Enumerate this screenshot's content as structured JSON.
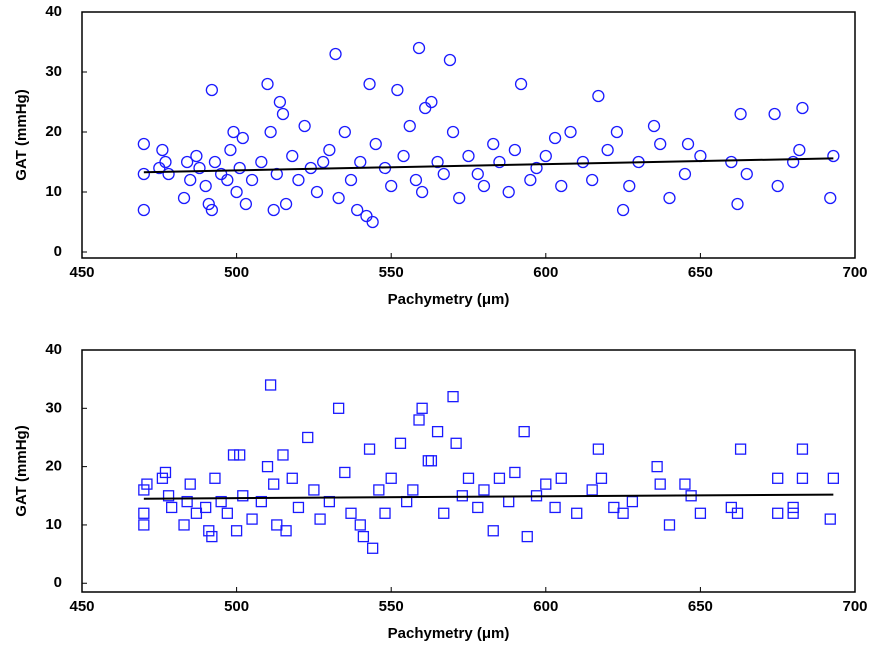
{
  "chart_data": [
    {
      "type": "scatter",
      "marker": "circle",
      "color": "#1a1aff",
      "xlabel": "Pachymetry (μm)",
      "ylabel": "GAT (mmHg)",
      "xlim": [
        450,
        700
      ],
      "xticks": [
        450,
        500,
        550,
        600,
        650,
        700
      ],
      "ylim": [
        -1,
        40
      ],
      "yticks": [
        0,
        10,
        20,
        30,
        40
      ],
      "x": [
        470,
        470,
        470,
        475,
        476,
        477,
        478,
        483,
        484,
        485,
        487,
        488,
        490,
        491,
        492,
        492,
        493,
        495,
        497,
        498,
        499,
        500,
        501,
        502,
        503,
        505,
        508,
        510,
        511,
        512,
        513,
        514,
        515,
        516,
        518,
        520,
        522,
        524,
        526,
        528,
        530,
        532,
        533,
        535,
        537,
        539,
        540,
        542,
        543,
        544,
        545,
        548,
        550,
        552,
        554,
        556,
        558,
        559,
        560,
        561,
        563,
        565,
        567,
        569,
        570,
        572,
        575,
        578,
        580,
        583,
        585,
        588,
        590,
        592,
        595,
        597,
        600,
        603,
        605,
        608,
        612,
        615,
        617,
        620,
        623,
        625,
        627,
        630,
        635,
        637,
        640,
        645,
        646,
        650,
        660,
        662,
        663,
        665,
        674,
        675,
        680,
        682,
        683,
        692,
        693
      ],
      "y": [
        7,
        13,
        18,
        14,
        17,
        15,
        13,
        9,
        15,
        12,
        16,
        14,
        11,
        8,
        7,
        27,
        15,
        13,
        12,
        17,
        20,
        10,
        14,
        19,
        8,
        12,
        15,
        28,
        20,
        7,
        13,
        25,
        23,
        8,
        16,
        12,
        21,
        14,
        10,
        15,
        17,
        33,
        9,
        20,
        12,
        7,
        15,
        6,
        28,
        5,
        18,
        14,
        11,
        27,
        16,
        21,
        12,
        34,
        10,
        24,
        25,
        15,
        13,
        32,
        20,
        9,
        16,
        13,
        11,
        18,
        15,
        10,
        17,
        28,
        12,
        14,
        16,
        19,
        11,
        20,
        15,
        12,
        26,
        17,
        20,
        7,
        11,
        15,
        21,
        18,
        9,
        13,
        18,
        16,
        15,
        8,
        23,
        13,
        23,
        11,
        15,
        17,
        24,
        9,
        16
      ],
      "trend": {
        "x": [
          470,
          693
        ],
        "y": [
          13.3,
          15.6
        ]
      }
    },
    {
      "type": "scatter",
      "marker": "square",
      "color": "#1a1aff",
      "xlabel": "Pachymetry (μm)",
      "ylabel": "GAT (mmHg)",
      "xlim": [
        450,
        700
      ],
      "xticks": [
        450,
        500,
        550,
        600,
        650,
        700
      ],
      "ylim": [
        -1.5,
        40
      ],
      "yticks": [
        0,
        10,
        20,
        30,
        40
      ],
      "x": [
        470,
        470,
        470,
        471,
        476,
        477,
        478,
        479,
        483,
        484,
        485,
        487,
        490,
        491,
        492,
        493,
        495,
        497,
        499,
        500,
        501,
        502,
        505,
        508,
        510,
        511,
        512,
        513,
        515,
        516,
        518,
        520,
        523,
        525,
        527,
        530,
        533,
        535,
        537,
        540,
        541,
        543,
        544,
        546,
        548,
        550,
        553,
        555,
        557,
        559,
        560,
        562,
        563,
        565,
        567,
        570,
        571,
        573,
        575,
        578,
        580,
        583,
        585,
        588,
        590,
        593,
        594,
        597,
        600,
        603,
        605,
        610,
        615,
        617,
        618,
        622,
        625,
        628,
        636,
        637,
        640,
        645,
        647,
        650,
        660,
        662,
        663,
        675,
        675,
        680,
        680,
        683,
        683,
        692,
        693
      ],
      "y": [
        10,
        12,
        16,
        17,
        18,
        19,
        15,
        13,
        10,
        14,
        17,
        12,
        13,
        9,
        8,
        18,
        14,
        12,
        22,
        9,
        22,
        15,
        11,
        14,
        20,
        34,
        17,
        10,
        22,
        9,
        18,
        13,
        25,
        16,
        11,
        14,
        30,
        19,
        12,
        10,
        8,
        23,
        6,
        16,
        12,
        18,
        24,
        14,
        16,
        28,
        30,
        21,
        21,
        26,
        12,
        32,
        24,
        15,
        18,
        13,
        16,
        9,
        18,
        14,
        19,
        26,
        8,
        15,
        17,
        13,
        18,
        12,
        16,
        23,
        18,
        13,
        12,
        14,
        20,
        17,
        10,
        17,
        15,
        12,
        13,
        12,
        23,
        12,
        18,
        12,
        13,
        18,
        23,
        11,
        18
      ],
      "trend": {
        "x": [
          470,
          693
        ],
        "y": [
          14.5,
          15.2
        ]
      }
    }
  ]
}
